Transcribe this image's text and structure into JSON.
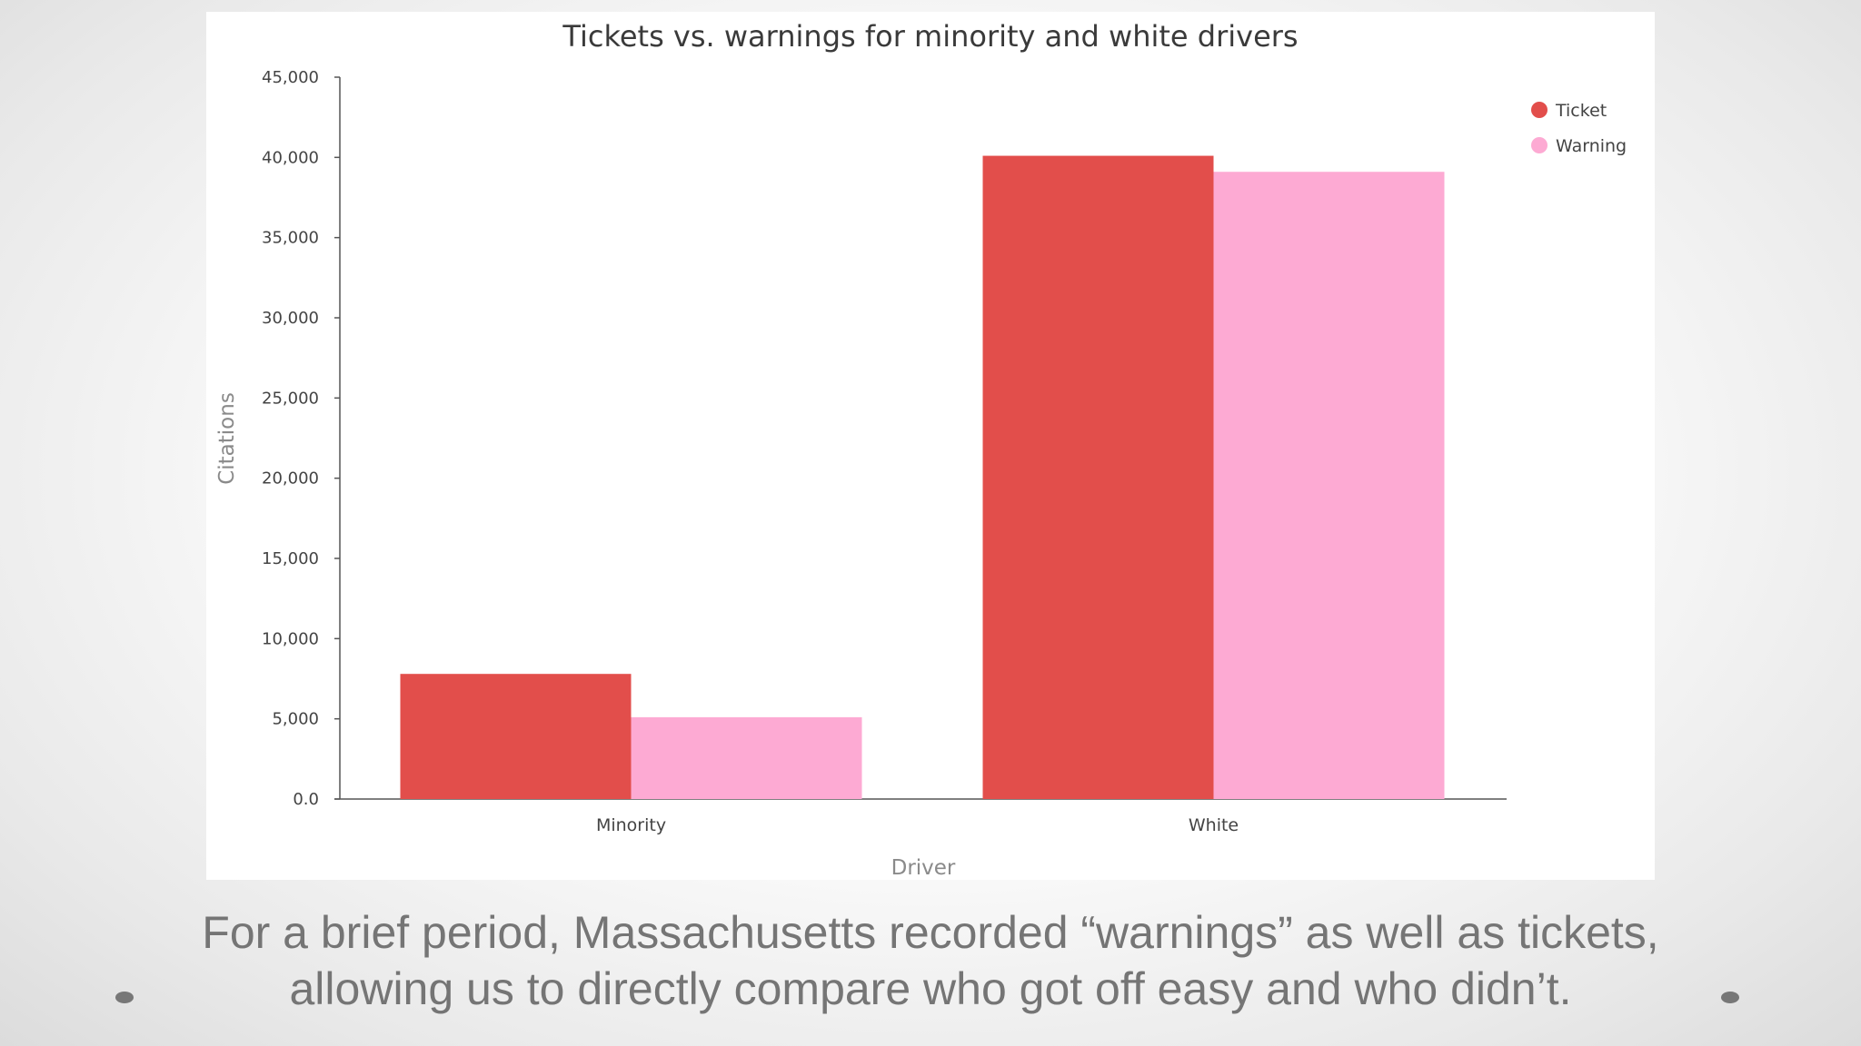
{
  "chart_data": {
    "type": "bar",
    "title": "Tickets vs. warnings for minority and white drivers",
    "xlabel": "Driver",
    "ylabel": "Citations",
    "categories": [
      "Minority",
      "White"
    ],
    "series": [
      {
        "name": "Ticket",
        "color": "#e24e4b",
        "values": [
          7800,
          40100
        ]
      },
      {
        "name": "Warning",
        "color": "#fdaad3",
        "values": [
          5100,
          39100
        ]
      }
    ],
    "ylim": [
      0,
      45000
    ],
    "yticks": [
      "0.0",
      "5,000",
      "10,000",
      "15,000",
      "20,000",
      "25,000",
      "30,000",
      "35,000",
      "40,000",
      "45,000"
    ],
    "grid": false,
    "legend": "top-right"
  },
  "caption": {
    "line1": "For a brief period, Massachusetts recorded “warnings” as well as tickets,",
    "line2": "allowing us to directly compare who got off easy and who didn’t."
  }
}
